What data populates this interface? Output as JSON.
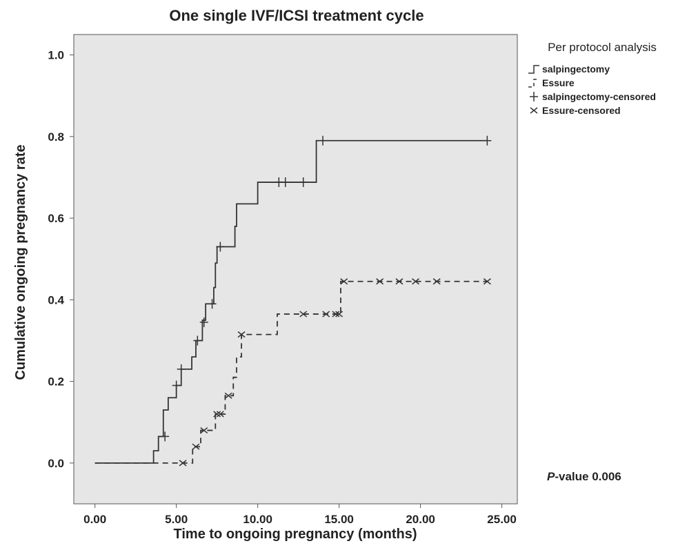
{
  "chart_data": {
    "type": "step",
    "title": "One single IVF/ICSI treatment cycle",
    "x_label": "Time to ongoing pregnancy (months)",
    "y_label": "Cumulative ongoing pregnancy rate",
    "xlim": [
      -1.3,
      25.95
    ],
    "ylim": [
      -0.1,
      1.05
    ],
    "xticks": [
      {
        "value": 0,
        "label": "0.00"
      },
      {
        "value": 5,
        "label": "5.00"
      },
      {
        "value": 10,
        "label": "10.00"
      },
      {
        "value": 15,
        "label": "15.00"
      },
      {
        "value": 20,
        "label": "20.00"
      },
      {
        "value": 25,
        "label": "25.00"
      }
    ],
    "yticks": [
      {
        "value": 0,
        "label": "0.0"
      },
      0.2,
      0.4,
      0.6,
      0.8,
      {
        "value": 1,
        "label": "1.0"
      }
    ],
    "legend_title": "Per protocol analysis",
    "legend_position": "right",
    "annotation": {
      "italic": "P",
      "text": "-value 0.006"
    },
    "series": [
      {
        "name": "salpingectomy",
        "color": "#333333",
        "style": "solid",
        "marker": "none",
        "x": [
          0,
          3.6,
          3.9,
          4.2,
          4.5,
          5.0,
          5.3,
          5.95,
          6.2,
          6.6,
          6.8,
          7.3,
          7.4,
          7.5,
          8.6,
          8.7,
          10.0,
          13.6,
          24.1
        ],
        "values": [
          0,
          0.03,
          0.065,
          0.13,
          0.16,
          0.19,
          0.23,
          0.26,
          0.3,
          0.35,
          0.39,
          0.43,
          0.49,
          0.53,
          0.58,
          0.635,
          0.688,
          0.79,
          0.79
        ]
      },
      {
        "name": "Essure",
        "color": "#333333",
        "style": "dashed",
        "marker": "none",
        "x": [
          0,
          6.0,
          6.5,
          7.4,
          8.0,
          8.5,
          8.7,
          9.0,
          11.2,
          15.1,
          24.1
        ],
        "values": [
          0,
          0.04,
          0.08,
          0.12,
          0.165,
          0.21,
          0.26,
          0.315,
          0.365,
          0.445,
          0.445
        ]
      },
      {
        "name": "salpingectomy-censored",
        "color": "#333333",
        "style": "none",
        "marker": "plus",
        "x": [
          4.3,
          5.0,
          5.3,
          6.3,
          6.7,
          7.2,
          7.7,
          11.3,
          11.7,
          12.8,
          14.0,
          24.1
        ],
        "values": [
          0.065,
          0.19,
          0.23,
          0.3,
          0.345,
          0.39,
          0.53,
          0.688,
          0.688,
          0.688,
          0.79,
          0.79
        ]
      },
      {
        "name": "Essure-censored",
        "color": "#333333",
        "style": "none",
        "marker": "cross",
        "x": [
          5.4,
          6.2,
          6.7,
          7.5,
          7.7,
          8.2,
          9.0,
          12.8,
          14.2,
          14.8,
          15.0,
          15.3,
          17.5,
          18.7,
          19.7,
          21.0,
          24.1
        ],
        "values": [
          0,
          0.04,
          0.08,
          0.12,
          0.12,
          0.165,
          0.315,
          0.365,
          0.365,
          0.365,
          0.365,
          0.445,
          0.445,
          0.445,
          0.445,
          0.445,
          0.445
        ]
      }
    ]
  }
}
